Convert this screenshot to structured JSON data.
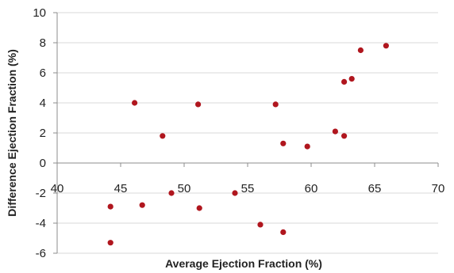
{
  "chart_data": {
    "type": "scatter",
    "title": "",
    "xlabel": "Average Ejection Fraction (%)",
    "ylabel": "Difference Ejection Fraction (%)",
    "xlim": [
      40,
      70
    ],
    "ylim": [
      -6,
      10
    ],
    "x_ticks": [
      40,
      45,
      50,
      55,
      60,
      65,
      70
    ],
    "y_ticks": [
      10,
      8,
      6,
      4,
      2,
      0,
      -2,
      -4,
      -6
    ],
    "grid": "horizontal",
    "marker_color": "#b0161e",
    "gridline_color": "#d9d9d9",
    "axis_color": "#8c8c8c",
    "series": [
      {
        "points": [
          {
            "x": 44.2,
            "y": -2.9
          },
          {
            "x": 44.2,
            "y": -5.3
          },
          {
            "x": 46.1,
            "y": 4.0
          },
          {
            "x": 46.7,
            "y": -2.8
          },
          {
            "x": 48.3,
            "y": 1.8
          },
          {
            "x": 49.0,
            "y": -2.0
          },
          {
            "x": 51.1,
            "y": 3.9
          },
          {
            "x": 51.2,
            "y": -3.0
          },
          {
            "x": 54.0,
            "y": -2.0
          },
          {
            "x": 56.0,
            "y": -4.1
          },
          {
            "x": 57.2,
            "y": 3.9
          },
          {
            "x": 57.8,
            "y": 1.3
          },
          {
            "x": 57.8,
            "y": -4.6
          },
          {
            "x": 59.7,
            "y": 1.1
          },
          {
            "x": 61.9,
            "y": 2.1
          },
          {
            "x": 62.6,
            "y": 1.8
          },
          {
            "x": 62.6,
            "y": 5.4
          },
          {
            "x": 63.2,
            "y": 5.6
          },
          {
            "x": 63.9,
            "y": 7.5
          },
          {
            "x": 65.9,
            "y": 7.8
          }
        ]
      }
    ]
  }
}
